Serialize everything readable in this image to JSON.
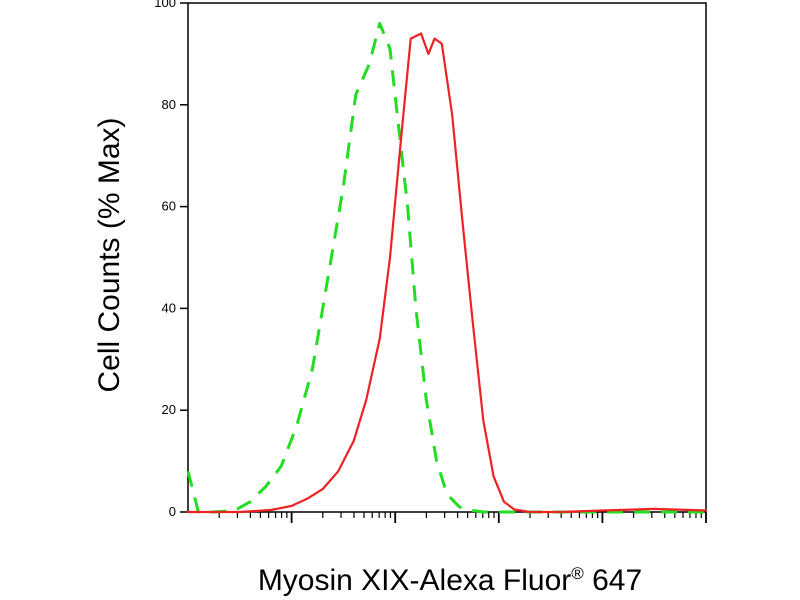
{
  "chart_data": {
    "type": "line",
    "title": "",
    "xlabel": "Myosin XIX-Alexa Fluor",
    "xlabel_superscript": "®",
    "xlabel_suffix": " 647",
    "ylabel": "Cell Counts (% Max)",
    "xscale": "log",
    "x_decades": 5,
    "ylim": [
      0,
      100
    ],
    "yticks": [
      0,
      20,
      40,
      60,
      80,
      100
    ],
    "ytick_labels": [
      "0",
      "20",
      "40",
      "60",
      "80",
      "100"
    ],
    "grid": false,
    "legend": "none",
    "series": [
      {
        "color": "#22dd22",
        "style": "dashed",
        "x": [
          0,
          0.1,
          0.25,
          0.45,
          0.6,
          0.75,
          0.9,
          1.05,
          1.2,
          1.35,
          1.5,
          1.62,
          1.75,
          1.85,
          1.95,
          2.02,
          2.12,
          2.2,
          2.3,
          2.4,
          2.5,
          2.62,
          2.75,
          2.85,
          2.95,
          3.1,
          3.5,
          5
        ],
        "y": [
          8,
          0,
          0,
          0.3,
          2,
          5,
          9,
          17,
          28,
          46,
          64,
          82,
          88,
          96,
          91,
          78,
          60,
          40,
          22,
          10,
          3.5,
          1,
          0.3,
          0,
          0,
          0,
          0,
          0
        ]
      },
      {
        "color": "#ee2222",
        "style": "solid",
        "x": [
          0,
          0.5,
          0.8,
          1.0,
          1.15,
          1.3,
          1.45,
          1.6,
          1.72,
          1.85,
          1.95,
          2.05,
          2.15,
          2.25,
          2.32,
          2.38,
          2.45,
          2.55,
          2.65,
          2.75,
          2.85,
          2.95,
          3.05,
          3.15,
          3.3,
          3.6,
          4.0,
          4.5,
          5
        ],
        "y": [
          0,
          0,
          0.4,
          1.2,
          2.6,
          4.5,
          8,
          14,
          22,
          34,
          50,
          72,
          93,
          94,
          90,
          93,
          92,
          78,
          57,
          37,
          18,
          7,
          2,
          0.5,
          0,
          0,
          0.3,
          0.6,
          0.3
        ]
      }
    ]
  }
}
